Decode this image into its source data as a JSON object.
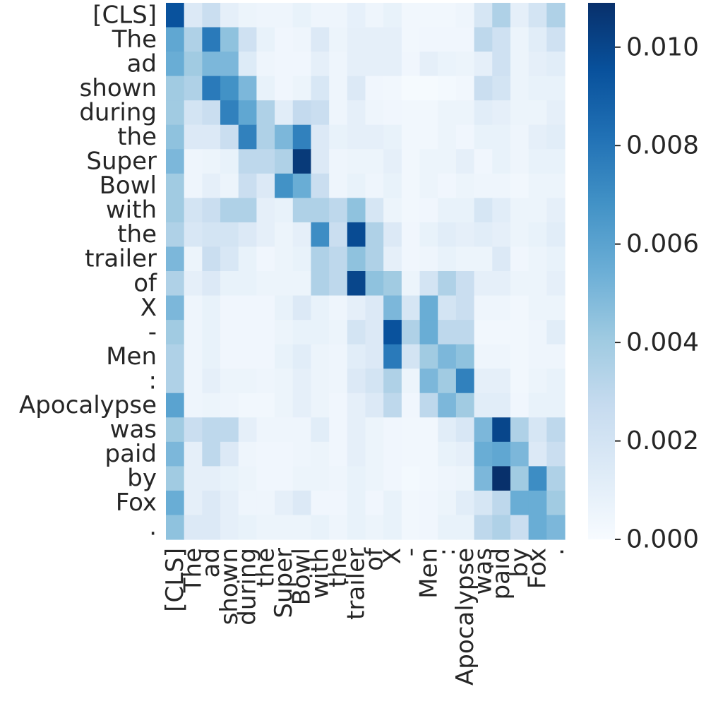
{
  "chart_data": {
    "type": "heatmap",
    "title": "",
    "xlabel": "",
    "ylabel": "",
    "x_tokens": [
      "[CLS]",
      "The",
      "ad",
      "shown",
      "during",
      "the",
      "Super",
      "Bowl",
      "with",
      "the",
      "trailer",
      "of",
      "X",
      "-",
      "Men",
      ":",
      "Apocalypse",
      "was",
      "paid",
      "by",
      "Fox",
      "."
    ],
    "y_tokens": [
      "[CLS]",
      "The",
      "ad",
      "shown",
      "during",
      "the",
      "Super",
      "Bowl",
      "with",
      "the",
      "trailer",
      "of",
      "X",
      "-",
      "Men",
      ":",
      "Apocalypse",
      "was",
      "paid",
      "by",
      "Fox",
      "."
    ],
    "colorbar": {
      "colormap": "Blues",
      "min": 0.0,
      "max": 0.0109,
      "ticks": [
        0.0,
        0.002,
        0.004,
        0.006,
        0.008,
        0.01
      ],
      "tick_labels": [
        "0.000",
        "0.002",
        "0.004",
        "0.006",
        "0.008",
        "0.010"
      ]
    },
    "values": [
      [
        0.0095,
        0.0015,
        0.0025,
        0.001,
        0.0006,
        0.0005,
        0.0005,
        0.0008,
        0.0005,
        0.0005,
        0.0009,
        0.0005,
        0.0008,
        0.0003,
        0.0003,
        0.0003,
        0.0005,
        0.0018,
        0.0035,
        0.001,
        0.002,
        0.0035
      ],
      [
        0.0058,
        0.0035,
        0.0078,
        0.0045,
        0.0022,
        0.0008,
        0.0004,
        0.0005,
        0.0015,
        0.0006,
        0.001,
        0.001,
        0.001,
        0.0003,
        0.0004,
        0.0004,
        0.0004,
        0.003,
        0.0022,
        0.0006,
        0.0012,
        0.0022
      ],
      [
        0.0055,
        0.004,
        0.005,
        0.005,
        0.0014,
        0.0005,
        0.0004,
        0.0004,
        0.001,
        0.0005,
        0.001,
        0.001,
        0.001,
        0.0004,
        0.001,
        0.0007,
        0.0006,
        0.001,
        0.0022,
        0.0006,
        0.001,
        0.0012
      ],
      [
        0.004,
        0.0035,
        0.0078,
        0.0068,
        0.005,
        0.0008,
        0.0004,
        0.0006,
        0.0017,
        0.0005,
        0.0015,
        0.0004,
        0.0003,
        0.0001,
        0.0001,
        0.0002,
        0.0003,
        0.0025,
        0.002,
        0.0006,
        0.0008,
        0.0008
      ],
      [
        0.004,
        0.002,
        0.0025,
        0.0075,
        0.0058,
        0.0035,
        0.0012,
        0.0028,
        0.0025,
        0.0005,
        0.001,
        0.0005,
        0.0004,
        0.0003,
        0.0003,
        0.0006,
        0.0006,
        0.0012,
        0.001,
        0.0006,
        0.0006,
        0.001
      ],
      [
        0.0045,
        0.0015,
        0.0015,
        0.0025,
        0.0075,
        0.0035,
        0.005,
        0.0075,
        0.0015,
        0.0008,
        0.001,
        0.001,
        0.0008,
        0.0003,
        0.0003,
        0.0006,
        0.0004,
        0.0008,
        0.0008,
        0.0005,
        0.001,
        0.0012
      ],
      [
        0.005,
        0.0005,
        0.0006,
        0.0008,
        0.003,
        0.003,
        0.0035,
        0.0105,
        0.0015,
        0.0005,
        0.0006,
        0.0006,
        0.001,
        0.0003,
        0.0006,
        0.0006,
        0.001,
        0.0004,
        0.0008,
        0.0005,
        0.0008,
        0.0008
      ],
      [
        0.004,
        0.0005,
        0.001,
        0.0006,
        0.0025,
        0.0015,
        0.0068,
        0.0055,
        0.0025,
        0.0005,
        0.0008,
        0.0005,
        0.0008,
        0.0003,
        0.0006,
        0.0004,
        0.0006,
        0.0005,
        0.0005,
        0.0003,
        0.0006,
        0.0006
      ],
      [
        0.004,
        0.002,
        0.0025,
        0.0035,
        0.0035,
        0.001,
        0.0008,
        0.0035,
        0.0035,
        0.003,
        0.0045,
        0.0018,
        0.0006,
        0.0003,
        0.0004,
        0.0008,
        0.0008,
        0.0018,
        0.0012,
        0.0006,
        0.0006,
        0.001
      ],
      [
        0.0035,
        0.0017,
        0.002,
        0.002,
        0.0015,
        0.001,
        0.0006,
        0.001,
        0.007,
        0.0025,
        0.0098,
        0.0035,
        0.0015,
        0.0004,
        0.0008,
        0.0012,
        0.001,
        0.0012,
        0.001,
        0.0006,
        0.0008,
        0.0012
      ],
      [
        0.005,
        0.0006,
        0.0025,
        0.0017,
        0.0008,
        0.0004,
        0.0006,
        0.0008,
        0.0035,
        0.003,
        0.0045,
        0.0035,
        0.001,
        0.0004,
        0.0005,
        0.0008,
        0.0006,
        0.0006,
        0.0015,
        0.0004,
        0.0006,
        0.0008
      ],
      [
        0.0035,
        0.001,
        0.0015,
        0.0008,
        0.0008,
        0.0006,
        0.0006,
        0.0006,
        0.0035,
        0.003,
        0.01,
        0.0045,
        0.004,
        0.0006,
        0.002,
        0.0035,
        0.0025,
        0.001,
        0.001,
        0.0006,
        0.0006,
        0.001
      ],
      [
        0.005,
        0.0005,
        0.0008,
        0.0004,
        0.0004,
        0.0004,
        0.0008,
        0.0015,
        0.0008,
        0.0005,
        0.001,
        0.0015,
        0.005,
        0.0018,
        0.0055,
        0.002,
        0.0025,
        0.0005,
        0.0005,
        0.0003,
        0.0006,
        0.0006
      ],
      [
        0.004,
        0.0005,
        0.0008,
        0.0004,
        0.0004,
        0.0004,
        0.0006,
        0.0008,
        0.0008,
        0.0006,
        0.002,
        0.0015,
        0.0095,
        0.0035,
        0.0055,
        0.003,
        0.003,
        0.0003,
        0.0003,
        0.0003,
        0.0005,
        0.0012
      ],
      [
        0.0035,
        0.0005,
        0.0008,
        0.0004,
        0.0004,
        0.0004,
        0.0008,
        0.0012,
        0.0006,
        0.0005,
        0.0012,
        0.0015,
        0.0078,
        0.002,
        0.004,
        0.005,
        0.0045,
        0.0005,
        0.0005,
        0.0003,
        0.0005,
        0.0005
      ],
      [
        0.0035,
        0.0005,
        0.001,
        0.0006,
        0.0006,
        0.0005,
        0.0006,
        0.001,
        0.0006,
        0.0005,
        0.0015,
        0.002,
        0.0035,
        0.0006,
        0.005,
        0.004,
        0.0075,
        0.001,
        0.001,
        0.0003,
        0.0006,
        0.0008
      ],
      [
        0.006,
        0.0005,
        0.0006,
        0.0005,
        0.0003,
        0.0003,
        0.0006,
        0.001,
        0.0006,
        0.0004,
        0.001,
        0.0015,
        0.003,
        0.0004,
        0.003,
        0.005,
        0.004,
        0.0012,
        0.0012,
        0.0004,
        0.0008,
        0.0008
      ],
      [
        0.004,
        0.0025,
        0.003,
        0.003,
        0.001,
        0.0005,
        0.0005,
        0.0005,
        0.0012,
        0.0004,
        0.001,
        0.0006,
        0.0004,
        0.0003,
        0.0003,
        0.0012,
        0.0017,
        0.005,
        0.01,
        0.0035,
        0.0018,
        0.003
      ],
      [
        0.005,
        0.001,
        0.003,
        0.0015,
        0.0005,
        0.0004,
        0.0004,
        0.0005,
        0.0006,
        0.0004,
        0.001,
        0.0006,
        0.0004,
        0.0003,
        0.0003,
        0.0008,
        0.001,
        0.0055,
        0.0058,
        0.005,
        0.0015,
        0.0025
      ],
      [
        0.004,
        0.001,
        0.001,
        0.0008,
        0.0006,
        0.0004,
        0.0004,
        0.0006,
        0.0006,
        0.0005,
        0.0008,
        0.0006,
        0.0004,
        0.0002,
        0.0003,
        0.0005,
        0.0006,
        0.005,
        0.0109,
        0.004,
        0.007,
        0.0035
      ],
      [
        0.0055,
        0.001,
        0.0015,
        0.001,
        0.0005,
        0.0005,
        0.001,
        0.0015,
        0.0004,
        0.0004,
        0.0008,
        0.0004,
        0.0008,
        0.0003,
        0.0004,
        0.0006,
        0.0012,
        0.0018,
        0.003,
        0.0055,
        0.0055,
        0.004
      ],
      [
        0.0045,
        0.0015,
        0.0015,
        0.001,
        0.0008,
        0.0006,
        0.0006,
        0.0006,
        0.0008,
        0.0005,
        0.0008,
        0.0006,
        0.0008,
        0.0003,
        0.0004,
        0.0008,
        0.0008,
        0.003,
        0.0035,
        0.0025,
        0.0055,
        0.005
      ]
    ]
  }
}
